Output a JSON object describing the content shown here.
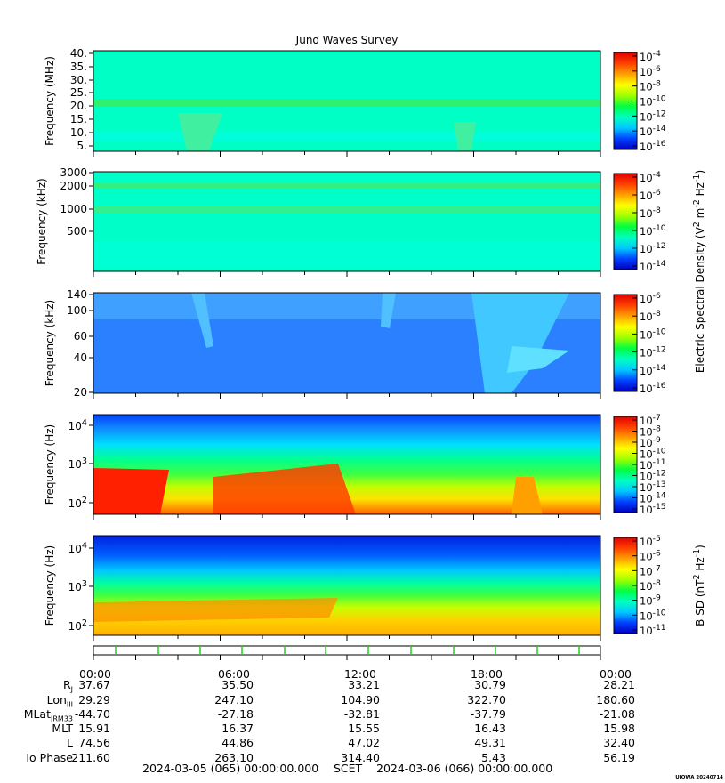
{
  "title": "Juno Waves Survey",
  "panels": [
    {
      "id": "p1",
      "ylabel": "Frequency (MHz)",
      "yticks": [
        "40.",
        "35.",
        "30.",
        "25.",
        "20.",
        "15.",
        "10.",
        "5."
      ],
      "cbar": [
        {
          "b": "10",
          "e": "-4"
        },
        {
          "b": "10",
          "e": "-6"
        },
        {
          "b": "10",
          "e": "-8"
        },
        {
          "b": "10",
          "e": "-10"
        },
        {
          "b": "10",
          "e": "-12"
        },
        {
          "b": "10",
          "e": "-14"
        },
        {
          "b": "10",
          "e": "-16"
        }
      ]
    },
    {
      "id": "p2",
      "ylabel": "Frequency (kHz)",
      "yticks": [
        "3000",
        "2000",
        "1000",
        "500"
      ],
      "cbar": [
        {
          "b": "10",
          "e": "-4"
        },
        {
          "b": "10",
          "e": "-6"
        },
        {
          "b": "10",
          "e": "-8"
        },
        {
          "b": "10",
          "e": "-10"
        },
        {
          "b": "10",
          "e": "-12"
        },
        {
          "b": "10",
          "e": "-14"
        }
      ]
    },
    {
      "id": "p3",
      "ylabel": "Frequency (kHz)",
      "yticks": [
        "140",
        "100",
        "60",
        "40",
        "20"
      ],
      "cbar": [
        {
          "b": "10",
          "e": "-6"
        },
        {
          "b": "10",
          "e": "-8"
        },
        {
          "b": "10",
          "e": "-10"
        },
        {
          "b": "10",
          "e": "-12"
        },
        {
          "b": "10",
          "e": "-14"
        },
        {
          "b": "10",
          "e": "-16"
        }
      ]
    },
    {
      "id": "p4",
      "ylabel": "Frequency (Hz)",
      "yticks": [
        {
          "b": "10",
          "e": "4"
        },
        {
          "b": "10",
          "e": "3"
        },
        {
          "b": "10",
          "e": "2"
        }
      ],
      "cbar": [
        {
          "b": "10",
          "e": "-7"
        },
        {
          "b": "10",
          "e": "-8"
        },
        {
          "b": "10",
          "e": "-9"
        },
        {
          "b": "10",
          "e": "-10"
        },
        {
          "b": "10",
          "e": "-11"
        },
        {
          "b": "10",
          "e": "-12"
        },
        {
          "b": "10",
          "e": "-13"
        },
        {
          "b": "10",
          "e": "-14"
        },
        {
          "b": "10",
          "e": "-15"
        }
      ]
    },
    {
      "id": "p5",
      "ylabel": "Frequency (Hz)",
      "yticks": [
        {
          "b": "10",
          "e": "4"
        },
        {
          "b": "10",
          "e": "3"
        },
        {
          "b": "10",
          "e": "2"
        }
      ],
      "cbar": [
        {
          "b": "10",
          "e": "-5"
        },
        {
          "b": "10",
          "e": "-6"
        },
        {
          "b": "10",
          "e": "-7"
        },
        {
          "b": "10",
          "e": "-8"
        },
        {
          "b": "10",
          "e": "-9"
        },
        {
          "b": "10",
          "e": "-10"
        },
        {
          "b": "10",
          "e": "-11"
        }
      ]
    }
  ],
  "cbar_label_electric": {
    "pre": "Electric Spectral Density (V",
    "s1": "2",
    "mid": " m",
    "s2": "-2",
    "mid2": " Hz",
    "s3": "-1",
    "post": ")"
  },
  "cbar_label_magnetic": {
    "pre": "B SD (nT",
    "s1": "2",
    "mid": " Hz",
    "s2": "-1",
    "post": ")"
  },
  "time_labels": [
    "00:00",
    "06:00",
    "12:00",
    "18:00",
    "00:00"
  ],
  "ephemeris": {
    "rows": [
      {
        "label": "R",
        "sub": "J",
        "values": [
          "37.67",
          "35.50",
          "33.21",
          "30.79",
          "28.21"
        ]
      },
      {
        "label": "Lon",
        "sub": "III",
        "values": [
          "29.29",
          "247.10",
          "104.90",
          "322.70",
          "180.60"
        ]
      },
      {
        "label": "MLat",
        "sub": "JRM33",
        "values": [
          "-44.70",
          "-27.18",
          "-32.81",
          "-37.79",
          "-21.08"
        ]
      },
      {
        "label": "MLT",
        "sub": "",
        "values": [
          "15.91",
          "16.37",
          "15.55",
          "16.43",
          "15.98"
        ]
      },
      {
        "label": "L",
        "sub": "",
        "values": [
          "74.56",
          "44.86",
          "47.02",
          "49.31",
          "32.40"
        ]
      },
      {
        "label": "Io Phase",
        "sub": "",
        "values": [
          "211.60",
          "263.10",
          "314.40",
          "5.43",
          "56.19"
        ]
      }
    ]
  },
  "footer": {
    "start": "2024-03-05 (065) 00:00:00.000",
    "scet": "SCET",
    "end": "2024-03-06 (066) 00:00:00.000"
  },
  "stamp": "UIOWA 20240714",
  "colors": {
    "background": "#00ffc8",
    "rainbow": [
      "#0000c0",
      "#0040ff",
      "#00c8ff",
      "#00ffc0",
      "#00ff40",
      "#a0ff00",
      "#ffff00",
      "#ffa000",
      "#ff4000",
      "#e00000"
    ]
  }
}
